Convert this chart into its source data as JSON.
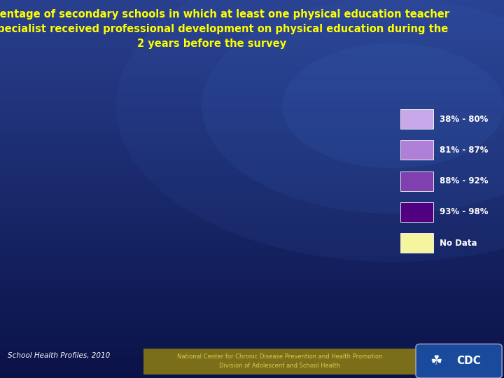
{
  "title_line1": "Percentage of secondary schools in which at least one physical education teacher",
  "title_line2": "or specialist received professional development on physical education during the",
  "title_line3": "2 years before the survey",
  "title_color": "#FFFF00",
  "title_fontsize": 10.5,
  "bg_color_dark": "#0d1f6e",
  "bg_color_mid": "#1a3a8c",
  "bg_color_light": "#2a5ab8",
  "legend_labels": [
    "38% - 80%",
    "81% - 87%",
    "88% - 92%",
    "93% - 98%",
    "No Data"
  ],
  "legend_colors": [
    "#c8a8e8",
    "#b080d8",
    "#8040b0",
    "#500080",
    "#f5f5a0"
  ],
  "footer_text1": "School Health Profiles, 2010",
  "footer_text2": "National Center for Chronic Disease Prevention and Health Promotion",
  "footer_text3": "Division of Adolescent and School Health",
  "footer_bg_color": "#7a6e1a",
  "state_colors": {
    "Alabama": "#8040b0",
    "Alaska": "#c8a8e8",
    "Arizona": "#c8a8e8",
    "Arkansas": "#500080",
    "California": "#b080d8",
    "Colorado": "#b080d8",
    "Connecticut": "#500080",
    "Delaware": "#8040b0",
    "Florida": "#500080",
    "Georgia": "#8040b0",
    "Hawaii": "#c8a8e8",
    "Idaho": "#c8a8e8",
    "Illinois": "#f5f5a0",
    "Indiana": "#c8a8e8",
    "Iowa": "#c8a8e8",
    "Kansas": "#b080d8",
    "Kentucky": "#8040b0",
    "Louisiana": "#8040b0",
    "Maine": "#500080",
    "Maryland": "#500080",
    "Massachusetts": "#500080",
    "Michigan": "#b080d8",
    "Minnesota": "#c8a8e8",
    "Mississippi": "#b080d8",
    "Missouri": "#b080d8",
    "Montana": "#c8a8e8",
    "Nebraska": "#c8a8e8",
    "Nevada": "#b080d8",
    "New Hampshire": "#500080",
    "New Jersey": "#500080",
    "New Mexico": "#c8a8e8",
    "New York": "#500080",
    "North Carolina": "#8040b0",
    "North Dakota": "#c8a8e8",
    "Ohio": "#c8a8e8",
    "Oklahoma": "#b080d8",
    "Oregon": "#c8a8e8",
    "Pennsylvania": "#500080",
    "Rhode Island": "#500080",
    "South Carolina": "#8040b0",
    "South Dakota": "#c8a8e8",
    "Tennessee": "#8040b0",
    "Texas": "#500080",
    "Utah": "#c8a8e8",
    "Vermont": "#500080",
    "Virginia": "#500080",
    "Washington": "#c8a8e8",
    "West Virginia": "#8040b0",
    "Wisconsin": "#500080",
    "Wyoming": "#c8a8e8"
  }
}
